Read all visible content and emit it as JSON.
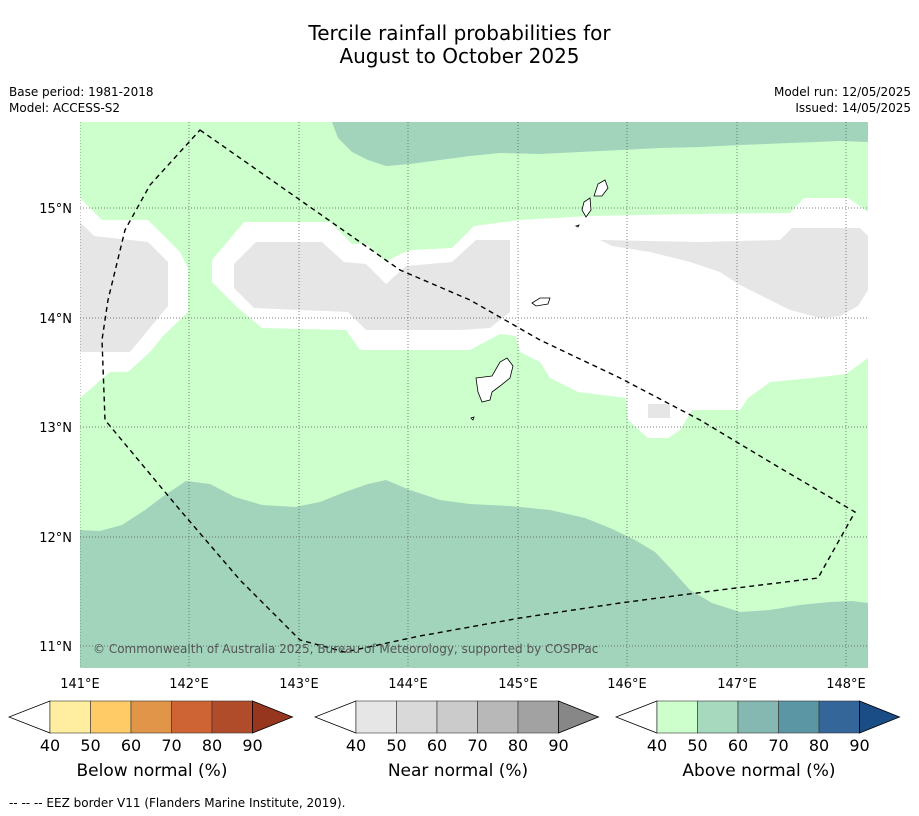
{
  "title": {
    "line1": "Tercile rainfall probabilities for",
    "line2": "August to October 2025"
  },
  "meta_left": {
    "base_period": "Base period: 1981-2018",
    "model": "Model: ACCESS-S2"
  },
  "meta_right": {
    "model_run": "Model run: 12/05/2025",
    "issued": "Issued: 14/05/2025"
  },
  "map": {
    "lon_range": [
      140.99,
      148.2
    ],
    "lat_range": [
      10.8,
      15.8
    ],
    "lon_ticks": [
      "141°E",
      "142°E",
      "143°E",
      "144°E",
      "145°E",
      "146°E",
      "147°E",
      "148°E"
    ],
    "lat_ticks": [
      "15°N",
      "14°N",
      "13°N",
      "12°N",
      "11°N"
    ],
    "copyright": "© Commonwealth of Australia 2025, Bureau of Meteorology, supported by COSPPac",
    "colors": {
      "above_40": "#ccffcc",
      "above_50": "#a1d4bb",
      "near_40": "#e6e6e6",
      "no_signal": "#ffffff",
      "land_outline": "#000000",
      "eez_border": "#000000"
    }
  },
  "legends": [
    {
      "name": "Below normal (%)",
      "ticks": [
        "40",
        "50",
        "60",
        "70",
        "80",
        "90"
      ],
      "colors": [
        "#ffeea0",
        "#fecb66",
        "#e19548",
        "#ce6433",
        "#b04c2a",
        "#97361f"
      ]
    },
    {
      "name": "Near normal (%)",
      "ticks": [
        "40",
        "50",
        "60",
        "70",
        "80",
        "90"
      ],
      "colors": [
        "#e6e6e6",
        "#d9d9d9",
        "#cbcbcb",
        "#b8b8b8",
        "#a2a2a2",
        "#878787"
      ]
    },
    {
      "name": "Above normal (%)",
      "ticks": [
        "40",
        "50",
        "60",
        "70",
        "80",
        "90"
      ],
      "colors": [
        "#ccffcc",
        "#a6d9bd",
        "#85b8b1",
        "#5b96a5",
        "#346699",
        "#1a4c86"
      ]
    }
  ],
  "footer": "--  --  -- EEZ border V11 (Flanders Marine Institute, 2019)."
}
